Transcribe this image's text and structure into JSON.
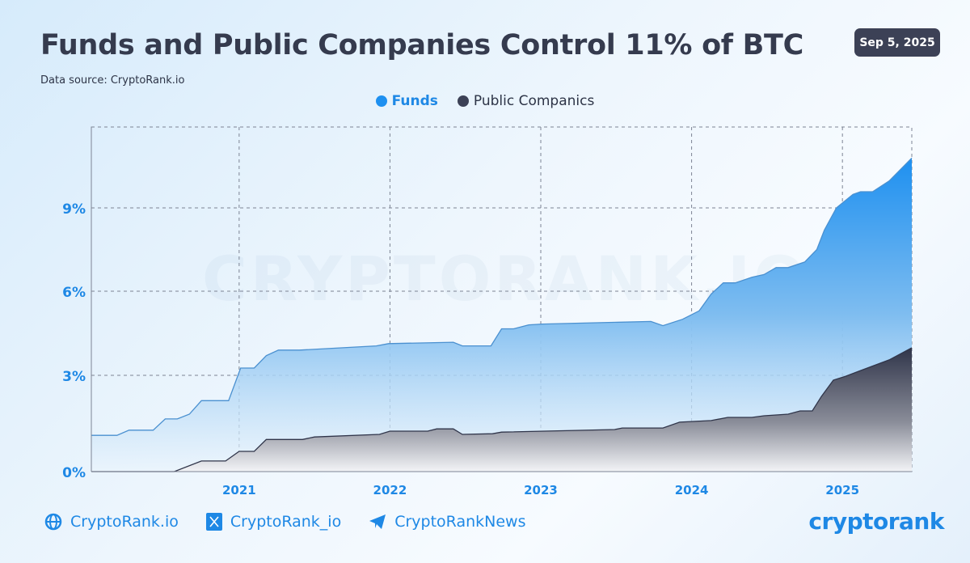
{
  "header": {
    "title": "Funds and Public Companies Control 11% of BTC",
    "source": "Data source: CryptoRank.io",
    "date": "Sep 5, 2025"
  },
  "watermark": "CRYPTORANK.IO",
  "footer": {
    "website": "CryptoRank.io",
    "x_handle": "CryptoRank_io",
    "telegram": "CryptoRankNews",
    "logo": "cryptorank"
  },
  "colors": {
    "funds": "#1e90f0",
    "public": "#3c4156",
    "accent": "#1e88e5"
  },
  "chart_data": {
    "type": "area",
    "title": "Funds and Public Companies Control 11% of BTC",
    "xlabel": "",
    "ylabel": "",
    "x_ticks": [
      "2021",
      "2022",
      "2023",
      "2024",
      "2025"
    ],
    "y_ticks": [
      "0%",
      "3%",
      "6%",
      "9%"
    ],
    "xlim": [
      2020.02,
      2025.46
    ],
    "ylim": [
      0,
      12
    ],
    "grid": true,
    "legend": "top-center",
    "series": [
      {
        "name": "Funds",
        "color": "#1e90f0",
        "x": [
          2020.02,
          2020.19,
          2020.27,
          2020.43,
          2020.51,
          2020.59,
          2020.67,
          2020.75,
          2020.93,
          2021.01,
          2021.1,
          2021.18,
          2021.26,
          2021.4,
          2021.91,
          2021.99,
          2022.42,
          2022.48,
          2022.67,
          2022.74,
          2022.82,
          2022.92,
          2023.01,
          2023.73,
          2023.81,
          2023.94,
          2024.05,
          2024.13,
          2024.21,
          2024.29,
          2024.4,
          2024.48,
          2024.56,
          2024.64,
          2024.75,
          2024.83,
          2024.88,
          2024.96,
          2025.07,
          2025.12,
          2025.2,
          2025.31,
          2025.46
        ],
        "values": [
          1.13,
          1.13,
          1.29,
          1.29,
          1.64,
          1.64,
          1.79,
          2.21,
          2.21,
          3.26,
          3.26,
          3.7,
          3.9,
          3.9,
          4.05,
          4.13,
          4.18,
          4.05,
          4.05,
          4.66,
          4.66,
          4.8,
          4.83,
          4.92,
          4.77,
          5.0,
          5.3,
          5.9,
          6.3,
          6.3,
          6.5,
          6.6,
          6.85,
          6.85,
          7.05,
          7.5,
          8.2,
          9.0,
          9.5,
          9.6,
          9.6,
          10.0,
          10.85
        ]
      },
      {
        "name": "Public Companics",
        "color": "#3c4156",
        "x": [
          2020.02,
          2020.57,
          2020.75,
          2020.91,
          2021.0,
          2021.1,
          2021.18,
          2021.42,
          2021.5,
          2021.93,
          2022.0,
          2022.25,
          2022.31,
          2022.42,
          2022.48,
          2022.68,
          2022.74,
          2023.49,
          2023.54,
          2023.81,
          2023.92,
          2024.13,
          2024.24,
          2024.4,
          2024.48,
          2024.64,
          2024.72,
          2024.8,
          2024.86,
          2024.94,
          2025.02,
          2025.12,
          2025.31,
          2025.46
        ],
        "values": [
          0,
          0,
          0.33,
          0.33,
          0.63,
          0.63,
          1.0,
          1.0,
          1.08,
          1.16,
          1.26,
          1.26,
          1.33,
          1.33,
          1.16,
          1.18,
          1.23,
          1.31,
          1.36,
          1.36,
          1.54,
          1.59,
          1.69,
          1.69,
          1.74,
          1.79,
          1.89,
          1.89,
          2.34,
          2.85,
          2.97,
          3.17,
          3.55,
          3.98
        ]
      }
    ]
  }
}
